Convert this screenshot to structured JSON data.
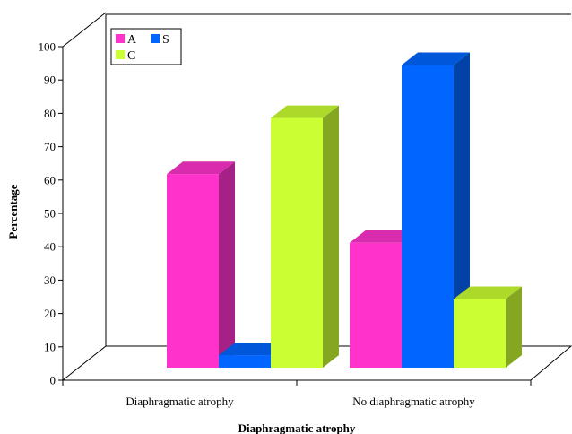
{
  "chart_data": {
    "type": "bar",
    "title": "",
    "xlabel": "Diaphragmatic atrophy",
    "ylabel": "Percentage",
    "ylim": [
      0,
      100
    ],
    "yticks": [
      0,
      10,
      20,
      30,
      40,
      50,
      60,
      70,
      80,
      90,
      100
    ],
    "categories": [
      "Diaphragmatic atrophy",
      "No diaphragmatic atrophy"
    ],
    "series": [
      {
        "name": "A",
        "color": "#ff33cc",
        "values": [
          62,
          40
        ]
      },
      {
        "name": "S",
        "color": "#0066ff",
        "values": [
          4,
          97
        ]
      },
      {
        "name": "C",
        "color": "#ccff33",
        "values": [
          80,
          22
        ]
      }
    ],
    "legend_position": "top-left",
    "grid": false,
    "style": "3d-column"
  }
}
